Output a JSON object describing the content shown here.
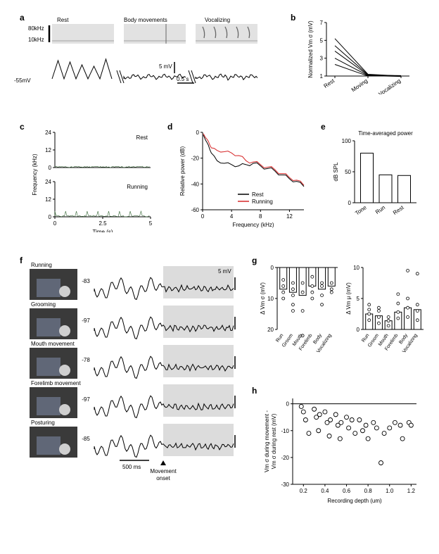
{
  "figure": {
    "panel_letters": {
      "a": "a",
      "b": "b",
      "c": "c",
      "d": "d",
      "e": "e",
      "f": "f",
      "g": "g",
      "h": "h"
    },
    "colors": {
      "black": "#000000",
      "red": "#d62728",
      "grey_bg": "#dcdcdc",
      "spectro_bg": "#e2e2e2",
      "spectro_mark": "#666666",
      "photo_bg": "#3a3a3a",
      "photo_highlight": "#7a86a0"
    },
    "a": {
      "conditions": [
        "Rest",
        "Body movements",
        "Vocalizing"
      ],
      "y_ticks_khz": [
        "80kHz",
        "10kHz"
      ],
      "vm_baseline": "-55mV",
      "scale_mv": "5 mV",
      "scale_s": "0.5 s"
    },
    "b": {
      "ylabel": "Normalized Vm σ (mV)",
      "yticks": [
        1,
        3,
        5,
        7
      ],
      "categories": [
        "Rest",
        "Moving",
        "Vocalizing"
      ],
      "lines": [
        [
          5.2,
          1.2,
          1.0
        ],
        [
          4.4,
          1.15,
          0.98
        ],
        [
          3.8,
          1.1,
          1.05
        ],
        [
          3.0,
          1.05,
          0.95
        ],
        [
          2.3,
          1.0,
          1.0
        ]
      ],
      "line_color": "#000000"
    },
    "c": {
      "ylabel": "Frequency (kHz)",
      "xlabel": "Time (s)",
      "yticks": [
        0,
        12,
        24
      ],
      "xticks": [
        0,
        2.5,
        5
      ],
      "conditions": [
        "Rest",
        "Running"
      ]
    },
    "d": {
      "ylabel": "Relative power (dB)",
      "xlabel": "Frequency (kHz)",
      "yticks": [
        -60,
        -40,
        -20,
        0
      ],
      "xticks": [
        0,
        4,
        8,
        12
      ],
      "legend": {
        "rest": "Rest",
        "running": "Running"
      },
      "colors": {
        "rest": "#000000",
        "running": "#d62728"
      },
      "series": {
        "rest_x": [
          0.1,
          0.4,
          0.8,
          1.2,
          2,
          3,
          4,
          5,
          6,
          7,
          8,
          9,
          10,
          11,
          12,
          13,
          14
        ],
        "rest_y": [
          -2,
          -6,
          -10,
          -16,
          -22,
          -24,
          -25,
          -26,
          -25,
          -24,
          -26,
          -28,
          -30,
          -33,
          -36,
          -38,
          -42
        ],
        "running_x": [
          0.1,
          0.4,
          0.8,
          1.2,
          2,
          3,
          4,
          5,
          6,
          7,
          8,
          9,
          10,
          11,
          12,
          13,
          14
        ],
        "running_y": [
          -1,
          -4,
          -7,
          -12,
          -14,
          -15,
          -16,
          -18,
          -22,
          -23,
          -25,
          -27,
          -29,
          -32,
          -35,
          -37,
          -41
        ]
      }
    },
    "e": {
      "title": "Time-averaged power",
      "ylabel": "dB SPL",
      "yticks": [
        0,
        50,
        100
      ],
      "categories": [
        "Tone",
        "Run",
        "Rest"
      ],
      "values": [
        80,
        45,
        44
      ],
      "bar_border": "#000000",
      "bar_fill": "#ffffff"
    },
    "f": {
      "conditions": [
        "Running",
        "Grooming",
        "Mouth movement",
        "Forelimb movement",
        "Posturing"
      ],
      "vm_labels": [
        "-83",
        "-97",
        "-78",
        "-97",
        "-85"
      ],
      "scale_mv": "5 mV",
      "scale_ms": "500 ms",
      "onset_label": "Movement onset"
    },
    "g": {
      "left_ylabel": "Δ Vm σ (mV)",
      "right_ylabel": "Δ Vm μ (mV)",
      "categories": [
        "Run",
        "Groom",
        "Mouth",
        "Forelimb",
        "Body",
        "Vocalizing"
      ],
      "left": {
        "yticks": [
          0,
          10,
          20
        ],
        "bar_values": [
          7,
          8,
          9,
          6,
          7,
          6
        ],
        "points": [
          [
            4,
            6,
            8,
            10
          ],
          [
            5,
            7,
            9,
            12,
            14
          ],
          [
            5,
            8,
            14,
            22
          ],
          [
            3,
            6,
            8,
            10
          ],
          [
            5,
            6,
            9,
            12
          ],
          [
            5,
            7,
            8
          ]
        ]
      },
      "right": {
        "yticks": [
          0,
          5,
          10
        ],
        "bar_values": [
          2.5,
          2.2,
          1.4,
          2.8,
          3.5,
          3.2
        ],
        "points": [
          [
            1.5,
            2.5,
            3.2,
            4.0
          ],
          [
            1.0,
            2.0,
            3.0,
            3.5
          ],
          [
            0.6,
            1.4,
            2.0
          ],
          [
            1.8,
            2.8,
            4.2,
            5.7
          ],
          [
            2.0,
            3.5,
            5.0,
            9.5
          ],
          [
            1.5,
            3.0,
            4.0,
            9.0
          ]
        ]
      },
      "bar_border": "#000000",
      "marker_border": "#000000"
    },
    "h": {
      "ylabel": "Vm σ during movement -\nVm σ during rest (mV)",
      "xlabel": "Recording depth (um)",
      "yticks": [
        -30,
        -20,
        -10,
        0
      ],
      "xticks": [
        0.2,
        0.4,
        0.6,
        0.8,
        1.0,
        1.2
      ],
      "points": [
        [
          0.18,
          -1
        ],
        [
          0.2,
          -3
        ],
        [
          0.22,
          -6
        ],
        [
          0.25,
          -11
        ],
        [
          0.3,
          -2
        ],
        [
          0.32,
          -5
        ],
        [
          0.35,
          -4
        ],
        [
          0.34,
          -10
        ],
        [
          0.4,
          -3
        ],
        [
          0.42,
          -7
        ],
        [
          0.45,
          -6
        ],
        [
          0.44,
          -12
        ],
        [
          0.5,
          -4
        ],
        [
          0.52,
          -8
        ],
        [
          0.55,
          -7
        ],
        [
          0.54,
          -13
        ],
        [
          0.6,
          -5
        ],
        [
          0.62,
          -9
        ],
        [
          0.65,
          -6
        ],
        [
          0.68,
          -11
        ],
        [
          0.72,
          -6
        ],
        [
          0.75,
          -10
        ],
        [
          0.78,
          -8
        ],
        [
          0.8,
          -13
        ],
        [
          0.85,
          -7
        ],
        [
          0.88,
          -9
        ],
        [
          0.92,
          -22
        ],
        [
          0.95,
          -11
        ],
        [
          1.0,
          -9
        ],
        [
          1.05,
          -7
        ],
        [
          1.1,
          -8
        ],
        [
          1.12,
          -13
        ],
        [
          1.18,
          -7
        ],
        [
          1.2,
          -8
        ]
      ],
      "zero_line_color": "#000000",
      "marker_border": "#000000"
    }
  }
}
